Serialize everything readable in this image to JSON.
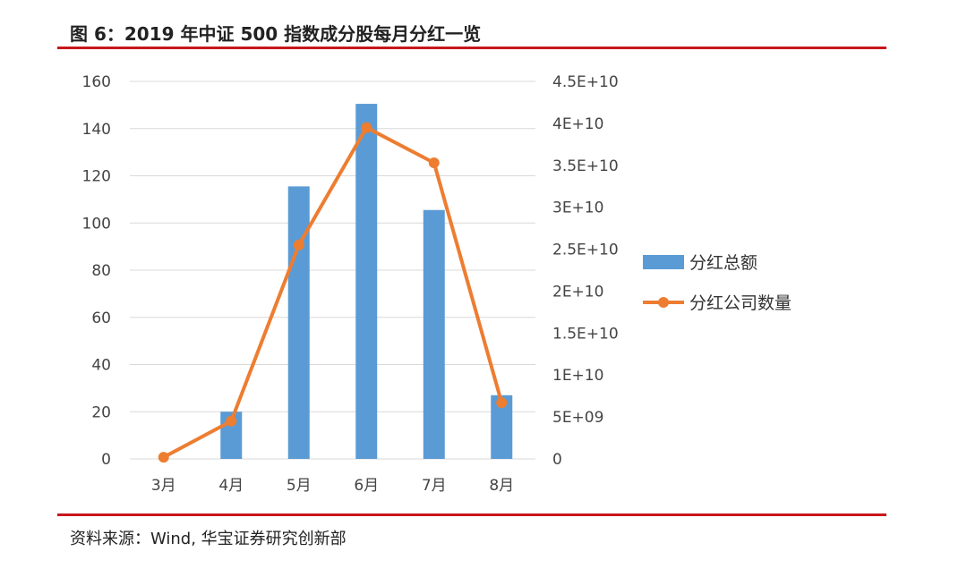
{
  "header": {
    "title": "图 6：2019 年中证 500 指数成分股每月分红一览"
  },
  "footer": {
    "source": "资料来源：Wind, 华宝证券研究创新部"
  },
  "colors": {
    "bar": "#5b9bd5",
    "line": "#ed7d31",
    "rule": "#c8161d",
    "grid": "#d9d9d9"
  },
  "chart_data": {
    "type": "bar+line",
    "categories": [
      "3月",
      "4月",
      "5月",
      "6月",
      "7月",
      "8月"
    ],
    "series": [
      {
        "name": "分红总额",
        "type": "bar",
        "axis": "left",
        "values": [
          0,
          20,
          115.5,
          150.5,
          105.5,
          27
        ]
      },
      {
        "name": "分红公司数量",
        "type": "line",
        "axis": "right",
        "values": [
          200000000,
          4500000000,
          25500000000,
          39500000000,
          35300000000,
          6700000000
        ]
      }
    ],
    "left_axis": {
      "ylim": [
        0,
        160
      ],
      "ticks": [
        0,
        20,
        40,
        60,
        80,
        100,
        120,
        140,
        160
      ],
      "tick_labels": [
        "0",
        "20",
        "40",
        "60",
        "80",
        "100",
        "120",
        "140",
        "160"
      ]
    },
    "right_axis": {
      "ylim": [
        0,
        45000000000
      ],
      "ticks": [
        0,
        5000000000,
        10000000000,
        15000000000,
        20000000000,
        25000000000,
        30000000000,
        35000000000,
        40000000000,
        45000000000
      ],
      "tick_labels": [
        "0",
        "5E+09",
        "1E+10",
        "1.5E+10",
        "2E+10",
        "2.5E+10",
        "3E+10",
        "3.5E+10",
        "4E+10",
        "4.5E+10"
      ]
    },
    "grid": true,
    "legend": {
      "position": "right",
      "entries": [
        "分红总额",
        "分红公司数量"
      ]
    }
  }
}
